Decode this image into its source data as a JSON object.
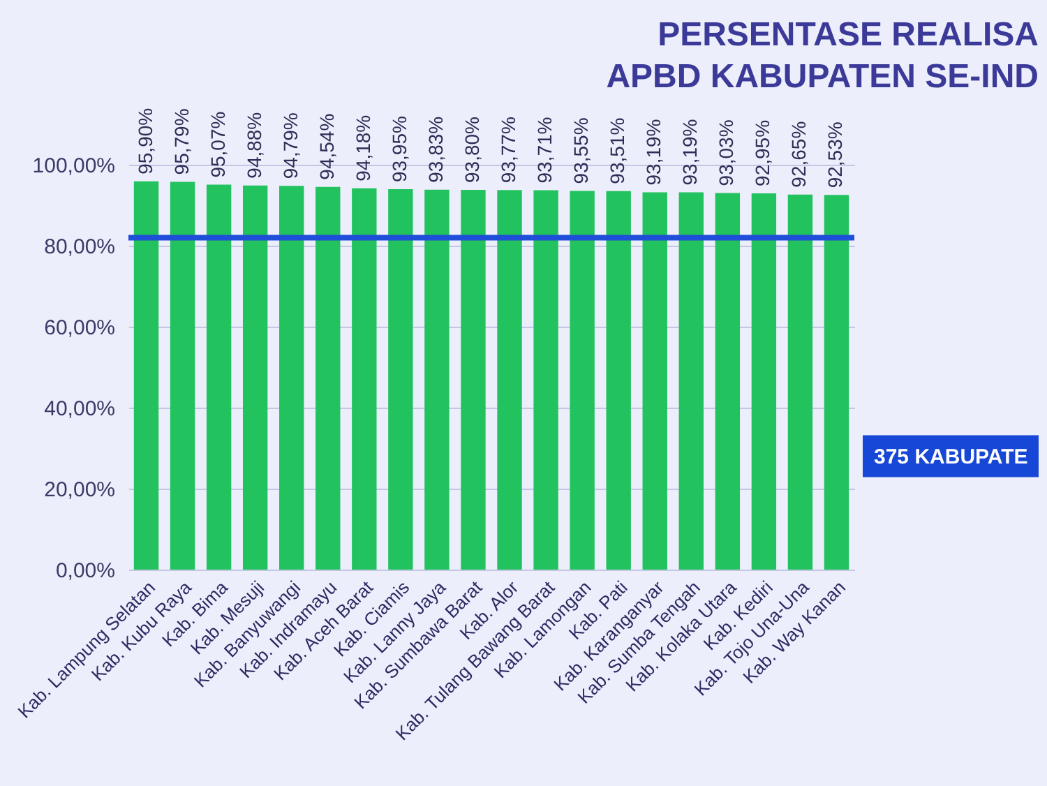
{
  "chart_data": {
    "type": "bar",
    "title": "PERSENTASE REALISA\nAPBD KABUPATEN SE-IND",
    "categories": [
      "Kab. Lampung Selatan",
      "Kab. Kubu Raya",
      "Kab. Bima",
      "Kab. Mesuji",
      "Kab. Banyuwangi",
      "Kab. Indramayu",
      "Kab. Aceh Barat",
      "Kab. Ciamis",
      "Kab. Lanny Jaya",
      "Kab. Sumbawa Barat",
      "Kab. Alor",
      "Kab. Tulang Bawang Barat",
      "Kab. Lamongan",
      "Kab. Pati",
      "Kab. Karanganyar",
      "Kab. Sumba Tengah",
      "Kab. Kolaka Utara",
      "Kab. Kediri",
      "Kab. Tojo Una-Una",
      "Kab. Way Kanan"
    ],
    "values": [
      95.9,
      95.79,
      95.07,
      94.88,
      94.79,
      94.54,
      94.18,
      93.95,
      93.83,
      93.8,
      93.77,
      93.71,
      93.55,
      93.51,
      93.19,
      93.19,
      93.03,
      92.95,
      92.65,
      92.53
    ],
    "value_labels": [
      "95,90%",
      "95,79%",
      "95,07%",
      "94,88%",
      "94,79%",
      "94,54%",
      "94,18%",
      "93,95%",
      "93,83%",
      "93,80%",
      "93,77%",
      "93,71%",
      "93,55%",
      "93,51%",
      "93,19%",
      "93,19%",
      "93,03%",
      "92,95%",
      "92,65%",
      "92,53%"
    ],
    "color": "#22c35e",
    "ylim": [
      0,
      100
    ],
    "yticks": [
      {
        "value": 0,
        "label": "0,00%"
      },
      {
        "value": 20,
        "label": "20,00%"
      },
      {
        "value": 40,
        "label": "40,00%"
      },
      {
        "value": 60,
        "label": "60,00%"
      },
      {
        "value": 80,
        "label": "80,00%"
      },
      {
        "value": 100,
        "label": "100,00%"
      }
    ],
    "grid": "y",
    "ref_lines": [
      {
        "axis": "y",
        "value": 82,
        "color": "#1f4fd8"
      }
    ],
    "annotations": [
      "375 KABUPATE"
    ]
  }
}
